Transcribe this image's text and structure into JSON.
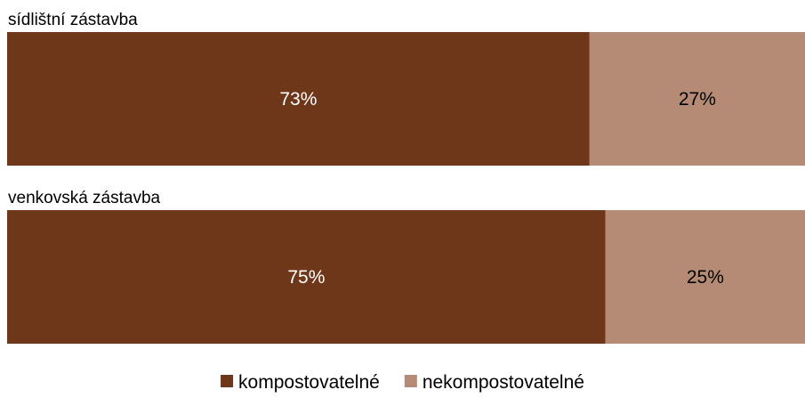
{
  "chart_data": {
    "type": "bar",
    "orientation": "horizontal",
    "stacked": "percent",
    "categories": [
      "sídlištní zástavba",
      "venkovská zástavba"
    ],
    "series": [
      {
        "name": "kompostovatelné",
        "values": [
          73,
          75
        ],
        "labels": [
          "73%",
          "75%"
        ]
      },
      {
        "name": "nekompostovatelné",
        "values": [
          27,
          25
        ],
        "labels": [
          "27%",
          "25%"
        ]
      }
    ],
    "xlim": [
      0,
      100
    ],
    "grid": false,
    "legend_position": "bottom-center",
    "title": "",
    "xlabel": "",
    "ylabel": ""
  },
  "colors": {
    "series": [
      "#6f3719",
      "#b68b75"
    ],
    "label_text": [
      "#ffffff",
      "#000000"
    ]
  }
}
